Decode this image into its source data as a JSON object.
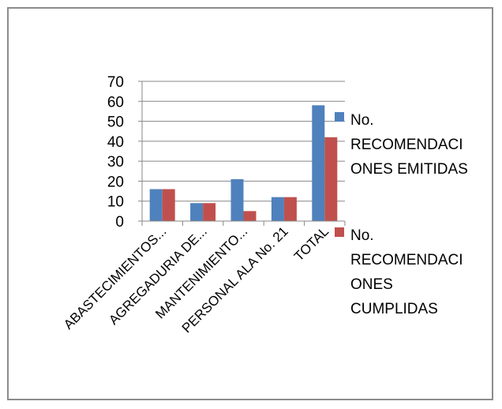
{
  "chart_data": {
    "type": "bar",
    "title": "",
    "xlabel": "",
    "ylabel": "",
    "categories": [
      "ABASTECIMIENTOS...",
      "AGREGADURIA DE...",
      "MANTENIMIENTO...",
      "PERSONAL ALA No. 21",
      "TOTAL"
    ],
    "series": [
      {
        "name": "No. RECOMENDACIONES EMITIDAS",
        "legend_lines": [
          "No.",
          "RECOMENDACI",
          "ONES EMITIDAS"
        ],
        "color": "#4f81bd",
        "values": [
          16,
          9,
          21,
          12,
          58
        ]
      },
      {
        "name": "No. RECOMENDACIONES CUMPLIDAS",
        "legend_lines": [
          "No.",
          "RECOMENDACI",
          "ONES",
          "CUMPLIDAS"
        ],
        "color": "#c0504d",
        "values": [
          16,
          9,
          5,
          12,
          42
        ]
      }
    ],
    "ylim": [
      0,
      70
    ],
    "yticks": [
      0,
      10,
      20,
      30,
      40,
      50,
      60,
      70
    ],
    "grid": true,
    "legend_position": "right"
  }
}
